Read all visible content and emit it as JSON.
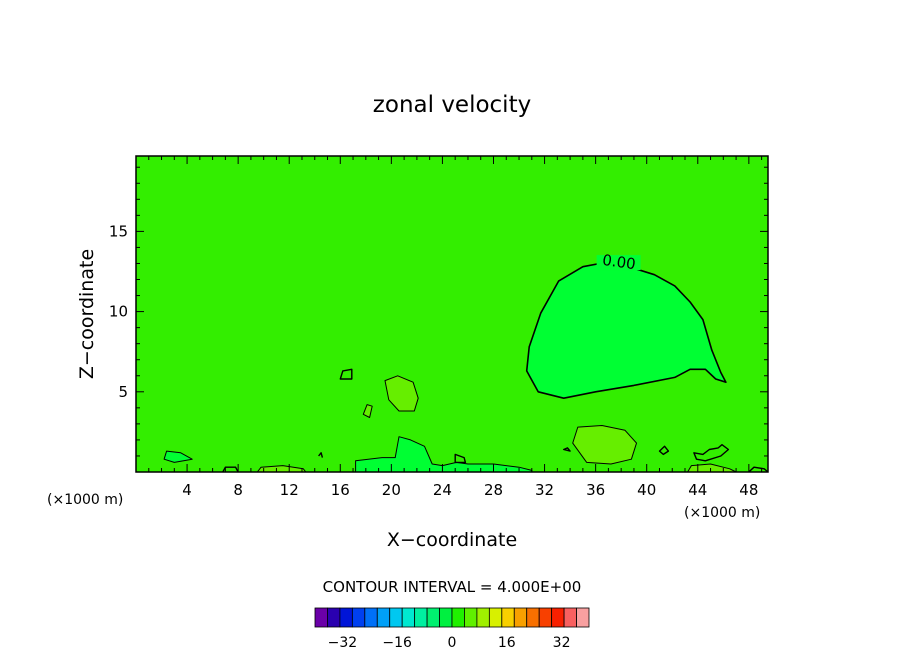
{
  "chart_data": {
    "type": "heatmap",
    "title": "zonal velocity",
    "xlabel": "X−coordinate",
    "ylabel": "Z−coordinate",
    "x_unit_left": "(×1000 m)",
    "x_unit_right": "(×1000 m)",
    "xlim": [
      0,
      49.5
    ],
    "ylim": [
      0,
      19.7
    ],
    "x_ticks": [
      4,
      8,
      12,
      16,
      20,
      24,
      28,
      32,
      36,
      40,
      44,
      48
    ],
    "y_ticks": [
      5,
      10,
      15
    ],
    "contour_label": "0.00",
    "contour_interval_text": "CONTOUR INTERVAL = 4.000E+00",
    "colorbar": {
      "tick_labels": [
        "−32",
        "−16",
        "0",
        "16",
        "32"
      ],
      "tick_values": [
        -32,
        -16,
        0,
        16,
        32
      ],
      "range": [
        -40,
        40
      ],
      "colors": [
        "#6a00a8",
        "#2a00b0",
        "#0015d8",
        "#0040f0",
        "#0070f8",
        "#00a0f8",
        "#00c8f0",
        "#00e8d0",
        "#00f0a0",
        "#00f070",
        "#00f040",
        "#20f000",
        "#60f000",
        "#a0f000",
        "#d8f000",
        "#f8d000",
        "#f8a000",
        "#f87000",
        "#f84000",
        "#f82000",
        "#f86060",
        "#f8a0a0"
      ]
    },
    "background_field_color": "#33ee00",
    "regions": [
      {
        "name": "negative-region-large",
        "color": "#00ff33",
        "points": [
          [
            30.6,
            6.3
          ],
          [
            30.8,
            7.8
          ],
          [
            31.7,
            9.9
          ],
          [
            33.1,
            11.9
          ],
          [
            35.0,
            12.8
          ],
          [
            37.0,
            13.1
          ],
          [
            39.0,
            12.7
          ],
          [
            40.6,
            12.3
          ],
          [
            42.2,
            11.6
          ],
          [
            43.4,
            10.6
          ],
          [
            44.4,
            9.5
          ],
          [
            45.1,
            7.6
          ],
          [
            45.8,
            6.2
          ],
          [
            46.2,
            5.6
          ],
          [
            45.4,
            5.8
          ],
          [
            44.6,
            6.4
          ],
          [
            43.4,
            6.4
          ],
          [
            42.2,
            5.9
          ],
          [
            39.0,
            5.4
          ],
          [
            36.0,
            5.0
          ],
          [
            33.5,
            4.6
          ],
          [
            31.5,
            5.0
          ]
        ]
      },
      {
        "name": "negative-region-bottom",
        "color": "#00ff33",
        "points": [
          [
            17.2,
            0
          ],
          [
            17.2,
            0.7
          ],
          [
            19.3,
            0.9
          ],
          [
            20.3,
            0.9
          ],
          [
            20.6,
            2.2
          ],
          [
            21.5,
            2.0
          ],
          [
            22.6,
            1.6
          ],
          [
            23.2,
            0.5
          ],
          [
            24.0,
            0.4
          ],
          [
            25.1,
            0.6
          ],
          [
            26.0,
            0.5
          ],
          [
            28.0,
            0.5
          ],
          [
            30.0,
            0.3
          ],
          [
            31.0,
            0.1
          ],
          [
            31.0,
            0
          ]
        ]
      },
      {
        "name": "negative-region-left",
        "color": "#00ff33",
        "points": [
          [
            2.2,
            0.8
          ],
          [
            2.4,
            1.3
          ],
          [
            3.5,
            1.2
          ],
          [
            4.4,
            0.8
          ],
          [
            3.0,
            0.6
          ]
        ]
      },
      {
        "name": "positive-region-mid",
        "color": "#66ee00",
        "points": [
          [
            19.5,
            5.7
          ],
          [
            19.8,
            4.5
          ],
          [
            20.6,
            3.8
          ],
          [
            21.8,
            3.8
          ],
          [
            22.1,
            4.6
          ],
          [
            21.7,
            5.6
          ],
          [
            20.5,
            6.0
          ]
        ]
      },
      {
        "name": "positive-region-small",
        "color": "#66ee00",
        "points": [
          [
            17.8,
            3.6
          ],
          [
            18.1,
            4.2
          ],
          [
            18.5,
            4.1
          ],
          [
            18.3,
            3.4
          ]
        ]
      },
      {
        "name": "positive-region-right",
        "color": "#66ee00",
        "points": [
          [
            34.2,
            1.8
          ],
          [
            34.6,
            2.8
          ],
          [
            36.5,
            2.9
          ],
          [
            38.3,
            2.6
          ],
          [
            39.2,
            1.8
          ],
          [
            38.8,
            0.8
          ],
          [
            37.2,
            0.5
          ],
          [
            35.3,
            0.6
          ]
        ]
      },
      {
        "name": "positive-region-bottom-left",
        "color": "#66ee00",
        "points": [
          [
            9.5,
            0
          ],
          [
            9.8,
            0.3
          ],
          [
            11.5,
            0.4
          ],
          [
            13.1,
            0.2
          ],
          [
            13.3,
            0
          ]
        ]
      },
      {
        "name": "positive-region-bottom-right",
        "color": "#66ee00",
        "points": [
          [
            43.2,
            0
          ],
          [
            43.5,
            0.4
          ],
          [
            45.0,
            0.5
          ],
          [
            46.5,
            0.2
          ],
          [
            47.0,
            0
          ]
        ]
      }
    ],
    "contour_lines": [
      {
        "closed": true,
        "points": [
          [
            16.0,
            5.8
          ],
          [
            16.2,
            6.3
          ],
          [
            16.9,
            6.4
          ],
          [
            16.9,
            5.8
          ]
        ]
      },
      {
        "closed": true,
        "points": [
          [
            25.0,
            1.1
          ],
          [
            25.7,
            0.9
          ],
          [
            25.8,
            0.6
          ],
          [
            25.0,
            0.6
          ]
        ]
      },
      {
        "closed": true,
        "points": [
          [
            43.7,
            1.2
          ],
          [
            44.4,
            1.1
          ],
          [
            44.9,
            1.4
          ],
          [
            45.6,
            1.5
          ],
          [
            45.9,
            1.7
          ],
          [
            46.4,
            1.4
          ],
          [
            45.8,
            1.0
          ],
          [
            44.6,
            0.7
          ],
          [
            43.9,
            0.8
          ]
        ]
      },
      {
        "closed": true,
        "points": [
          [
            41.0,
            1.3
          ],
          [
            41.4,
            1.6
          ],
          [
            41.7,
            1.3
          ],
          [
            41.3,
            1.1
          ]
        ]
      },
      {
        "closed": true,
        "points": [
          [
            33.5,
            1.4
          ],
          [
            33.8,
            1.5
          ],
          [
            34.0,
            1.3
          ]
        ]
      },
      {
        "closed": false,
        "points": [
          [
            14.3,
            1.0
          ],
          [
            14.5,
            1.2
          ],
          [
            14.6,
            0.9
          ]
        ]
      },
      {
        "closed": false,
        "points": [
          [
            6.8,
            0
          ],
          [
            7.0,
            0.3
          ],
          [
            7.8,
            0.3
          ],
          [
            8.0,
            0
          ]
        ]
      },
      {
        "closed": false,
        "points": [
          [
            48.0,
            0
          ],
          [
            48.4,
            0.3
          ],
          [
            49.2,
            0.2
          ],
          [
            49.5,
            0
          ]
        ]
      }
    ]
  }
}
